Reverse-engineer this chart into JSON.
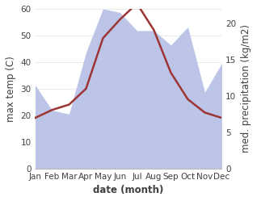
{
  "months": [
    "Jan",
    "Feb",
    "Mar",
    "Apr",
    "May",
    "Jun",
    "Jul",
    "Aug",
    "Sep",
    "Oct",
    "Nov",
    "Dec"
  ],
  "temp": [
    19,
    22,
    24,
    30,
    49,
    56,
    62,
    52,
    36,
    26,
    21,
    19
  ],
  "precip": [
    11.5,
    8,
    7.5,
    16,
    22,
    21.5,
    19,
    19,
    17,
    19.5,
    10.5,
    14.5
  ],
  "temp_color": "#9e3535",
  "precip_fill_color": "#bcc5e8",
  "temp_ylim": [
    0,
    60
  ],
  "precip_ylim": [
    0,
    22
  ],
  "xlabel": "date (month)",
  "ylabel_left": "max temp (C)",
  "ylabel_right": "med. precipitation (kg/m2)",
  "tick_fontsize": 7.5,
  "label_fontsize": 8.5,
  "right_ticks": [
    0,
    5,
    10,
    15,
    20
  ],
  "left_ticks": [
    0,
    10,
    20,
    30,
    40,
    50,
    60
  ]
}
